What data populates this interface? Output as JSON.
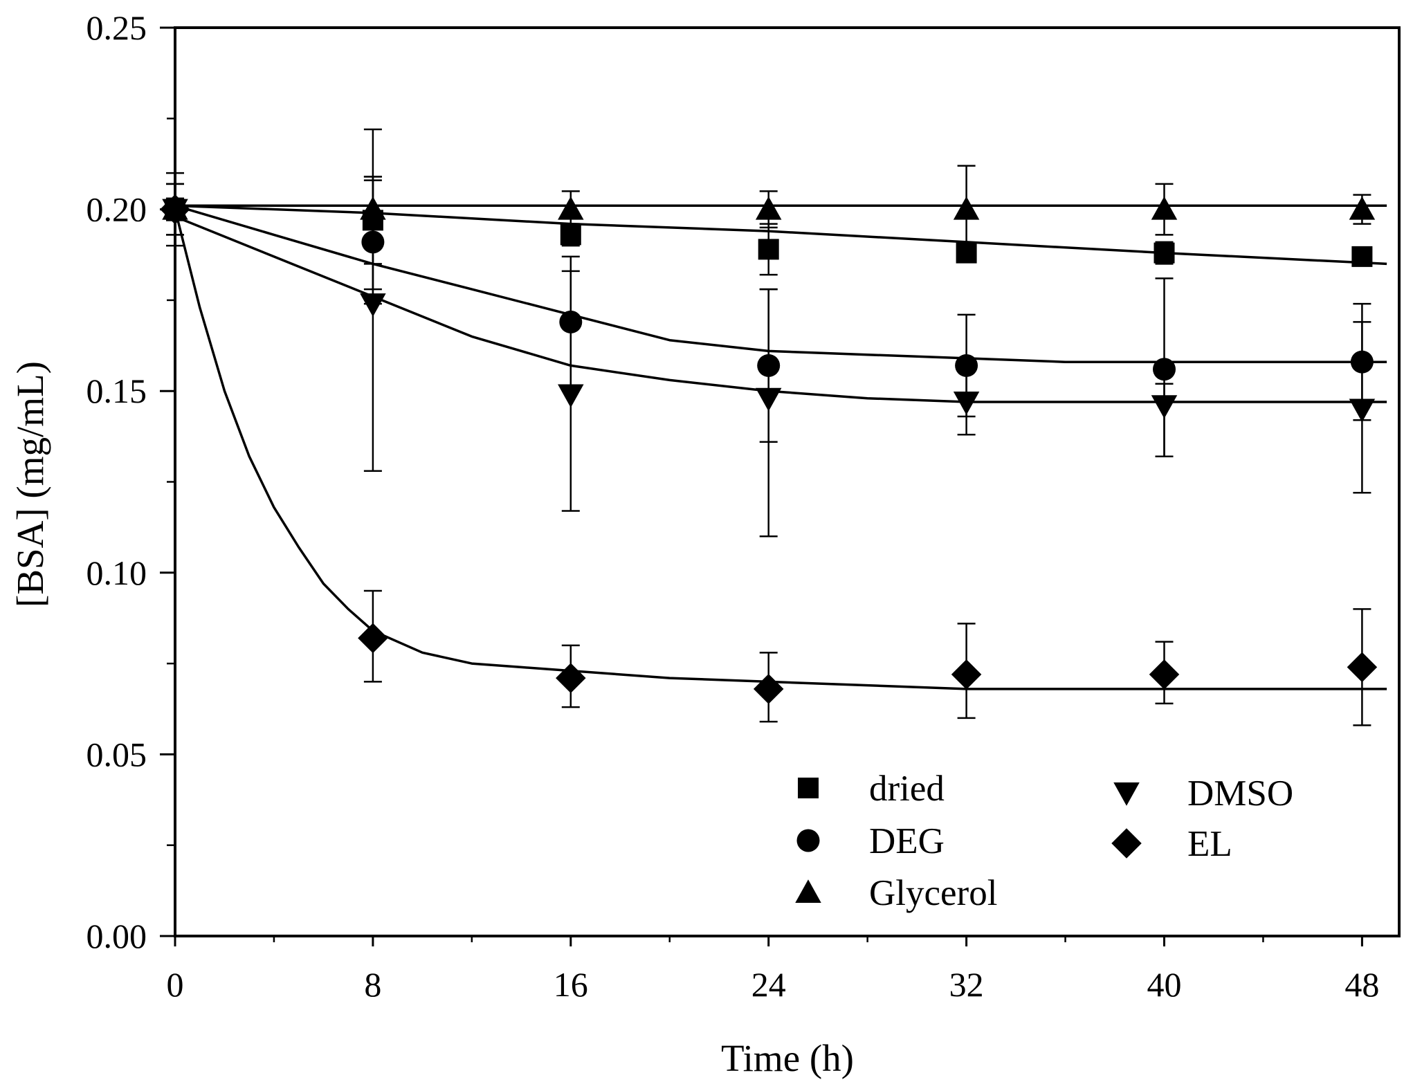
{
  "chart_data": {
    "type": "scatter",
    "title": "",
    "xlabel": "Time (h)",
    "ylabel": "[BSA] (mg/mL)",
    "xlim": [
      0,
      49.5
    ],
    "ylim": [
      0,
      0.25
    ],
    "xticks": [
      0,
      8,
      16,
      24,
      32,
      40,
      48
    ],
    "yticks": [
      0.0,
      0.05,
      0.1,
      0.15,
      0.2,
      0.25
    ],
    "ytick_labels": [
      "0.00",
      "0.05",
      "0.10",
      "0.15",
      "0.20",
      "0.25"
    ],
    "x": [
      0,
      8,
      16,
      24,
      32,
      40,
      48
    ],
    "series": [
      {
        "name": "dried",
        "marker": "square",
        "values": [
          0.2,
          0.197,
          0.193,
          0.189,
          0.188,
          0.188,
          0.187
        ],
        "err_hi": [
          0.203,
          0.209,
          0.196,
          0.196,
          0.19,
          0.191,
          0.189
        ],
        "err_lo": [
          0.197,
          0.185,
          0.19,
          0.182,
          0.186,
          0.185,
          0.185
        ],
        "fit": [
          [
            0,
            0.201
          ],
          [
            8,
            0.199
          ],
          [
            16,
            0.196
          ],
          [
            24,
            0.194
          ],
          [
            32,
            0.191
          ],
          [
            40,
            0.188
          ],
          [
            49,
            0.185
          ]
        ]
      },
      {
        "name": "DEG",
        "marker": "circle",
        "values": [
          0.2,
          0.191,
          0.169,
          0.157,
          0.157,
          0.156,
          0.158
        ],
        "err_hi": [
          0.207,
          0.208,
          0.187,
          0.178,
          0.171,
          0.181,
          0.174
        ],
        "err_lo": [
          0.193,
          0.174,
          0.151,
          0.136,
          0.143,
          0.132,
          0.142
        ],
        "fit": [
          [
            0,
            0.201
          ],
          [
            4,
            0.193
          ],
          [
            8,
            0.185
          ],
          [
            12,
            0.178
          ],
          [
            16,
            0.171
          ],
          [
            20,
            0.164
          ],
          [
            24,
            0.161
          ],
          [
            28,
            0.16
          ],
          [
            32,
            0.159
          ],
          [
            36,
            0.158
          ],
          [
            40,
            0.158
          ],
          [
            49,
            0.158
          ]
        ]
      },
      {
        "name": "Glycerol",
        "marker": "triangle-up",
        "values": [
          0.2,
          0.2,
          0.2,
          0.2,
          0.2,
          0.2,
          0.2
        ],
        "err_hi": [
          0.207,
          0.222,
          0.205,
          0.205,
          0.212,
          0.207,
          0.204
        ],
        "err_lo": [
          0.193,
          0.178,
          0.195,
          0.195,
          0.188,
          0.193,
          0.196
        ],
        "fit": [
          [
            0,
            0.201
          ],
          [
            49,
            0.201
          ]
        ]
      },
      {
        "name": "DMSO",
        "marker": "triangle-down",
        "values": [
          0.2,
          0.174,
          0.149,
          0.148,
          0.147,
          0.146,
          0.145
        ],
        "err_hi": [
          0.21,
          0.209,
          0.183,
          0.178,
          0.157,
          0.152,
          0.169
        ],
        "err_lo": [
          0.19,
          0.128,
          0.117,
          0.11,
          0.138,
          0.132,
          0.122
        ],
        "fit": [
          [
            0,
            0.198
          ],
          [
            4,
            0.187
          ],
          [
            8,
            0.176
          ],
          [
            12,
            0.165
          ],
          [
            16,
            0.157
          ],
          [
            20,
            0.153
          ],
          [
            24,
            0.15
          ],
          [
            28,
            0.148
          ],
          [
            32,
            0.147
          ],
          [
            40,
            0.147
          ],
          [
            49,
            0.147
          ]
        ]
      },
      {
        "name": "EL",
        "marker": "diamond",
        "values": [
          0.2,
          0.082,
          0.071,
          0.068,
          0.072,
          0.072,
          0.074
        ],
        "err_hi": [
          0.203,
          0.095,
          0.08,
          0.078,
          0.086,
          0.081,
          0.09
        ],
        "err_lo": [
          0.197,
          0.07,
          0.063,
          0.059,
          0.06,
          0.064,
          0.058
        ],
        "fit": [
          [
            0,
            0.2
          ],
          [
            1,
            0.173
          ],
          [
            2,
            0.15
          ],
          [
            3,
            0.132
          ],
          [
            4,
            0.118
          ],
          [
            5,
            0.107
          ],
          [
            6,
            0.097
          ],
          [
            7,
            0.09
          ],
          [
            8,
            0.084
          ],
          [
            10,
            0.078
          ],
          [
            12,
            0.075
          ],
          [
            14,
            0.074
          ],
          [
            16,
            0.073
          ],
          [
            20,
            0.071
          ],
          [
            24,
            0.07
          ],
          [
            28,
            0.069
          ],
          [
            32,
            0.068
          ],
          [
            40,
            0.068
          ],
          [
            49,
            0.068
          ]
        ]
      }
    ],
    "legend_position": "bottom-right",
    "grid": false
  }
}
